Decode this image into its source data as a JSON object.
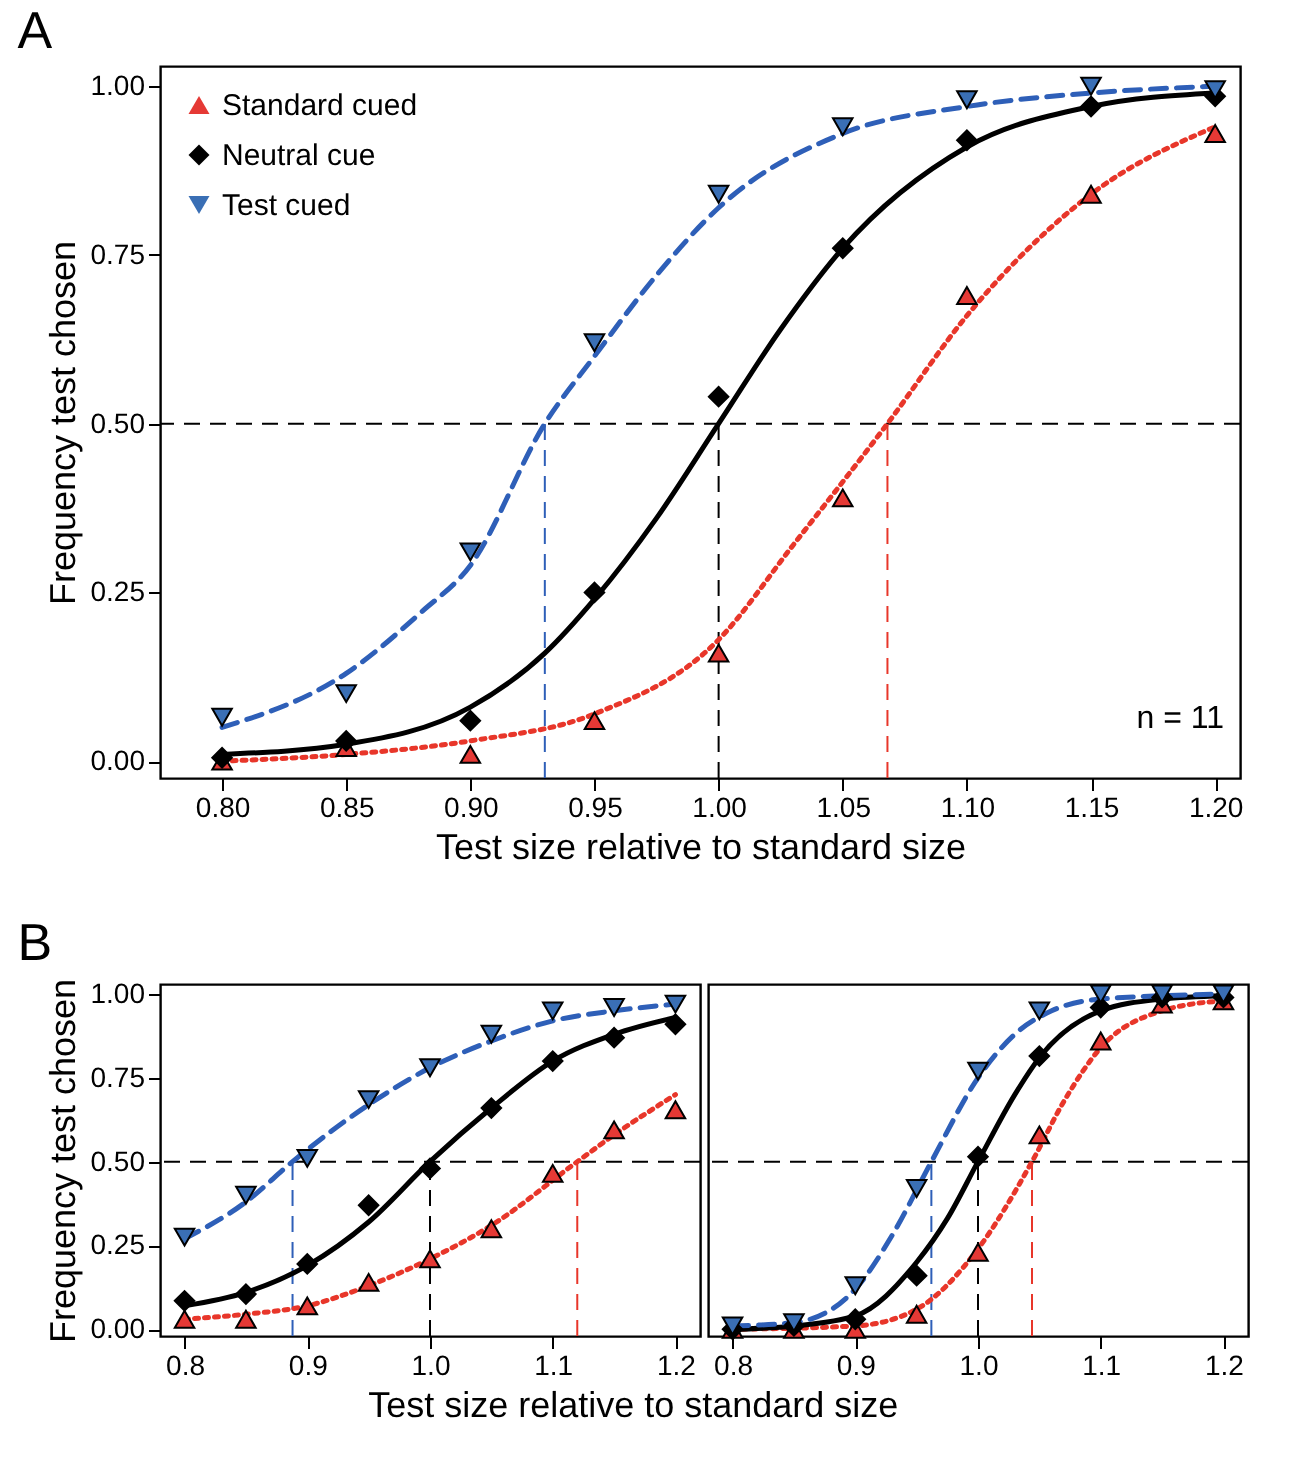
{
  "chart_data": [
    {
      "type": "scatter",
      "title": "A",
      "xlabel": "Test size relative to standard size",
      "ylabel": "Frequency test chosen",
      "legend": "top left",
      "grid": false,
      "xlim": [
        0.775,
        1.21
      ],
      "xticks": [
        {
          "value": 0.8,
          "label": "0.80"
        },
        {
          "value": 0.85,
          "label": "0.85"
        },
        {
          "value": 0.9,
          "label": "0.90"
        },
        {
          "value": 0.95,
          "label": "0.95"
        },
        {
          "value": 1.0,
          "label": "1.00"
        },
        {
          "value": 1.05,
          "label": "1.05"
        },
        {
          "value": 1.1,
          "label": "1.10"
        },
        {
          "value": 1.15,
          "label": "1.15"
        },
        {
          "value": 1.2,
          "label": "1.20"
        }
      ],
      "ylim": [
        -0.025,
        1.03
      ],
      "yticks": [
        {
          "value": 0,
          "label": "0.00"
        },
        {
          "value": 0.25,
          "label": "0.25"
        },
        {
          "value": 0.5,
          "label": "0.50"
        },
        {
          "value": 0.75,
          "label": "0.75"
        },
        {
          "value": 1,
          "label": "1.00"
        }
      ],
      "x": [
        0.8,
        0.85,
        0.9,
        0.95,
        1.0,
        1.05,
        1.1,
        1.15,
        1.2
      ],
      "series": [
        {
          "name": "Standard cued",
          "type": "scatter",
          "marker": "triangle",
          "color": "#e53935",
          "values": [
            0.0,
            0.02,
            0.01,
            0.06,
            0.16,
            0.39,
            0.69,
            0.84,
            0.93
          ]
        },
        {
          "name": "Neutral cue",
          "type": "scatter",
          "marker": "diamond",
          "color": "#000000",
          "values": [
            0.005,
            0.03,
            0.06,
            0.25,
            0.54,
            0.76,
            0.92,
            0.97,
            0.985
          ]
        },
        {
          "name": "Test cued",
          "type": "scatter",
          "marker": "triangle-down",
          "color": "#3a6fb5",
          "values": [
            0.065,
            0.1,
            0.31,
            0.62,
            0.84,
            0.94,
            0.98,
            1.0,
            0.995
          ]
        },
        {
          "type": "line",
          "line_style": "dotted",
          "color": "#e8362a",
          "x": [
            0.8,
            0.85,
            0.9,
            0.95,
            1.0,
            1.03,
            1.068,
            1.1,
            1.15,
            1.2
          ],
          "values": [
            0.0,
            0.01,
            0.03,
            0.07,
            0.18,
            0.32,
            0.5,
            0.66,
            0.84,
            0.94
          ]
        },
        {
          "type": "line",
          "line_style": "solid",
          "color": "#000000",
          "x": [
            0.8,
            0.85,
            0.9,
            0.93,
            0.95,
            0.975,
            1.0,
            1.025,
            1.05,
            1.1,
            1.15,
            1.2
          ],
          "values": [
            0.01,
            0.025,
            0.08,
            0.16,
            0.24,
            0.36,
            0.5,
            0.64,
            0.76,
            0.91,
            0.97,
            0.99
          ]
        },
        {
          "type": "line",
          "line_style": "dashed",
          "color": "#2e5fb8",
          "x": [
            0.8,
            0.85,
            0.88,
            0.9,
            0.93,
            0.95,
            0.975,
            1.0,
            1.05,
            1.1,
            1.15,
            1.2
          ],
          "values": [
            0.05,
            0.13,
            0.22,
            0.29,
            0.5,
            0.6,
            0.72,
            0.82,
            0.93,
            0.97,
            0.99,
            1.0
          ]
        }
      ],
      "ref_lines": [
        {
          "axis": "y",
          "value": 0.5,
          "color": "#000000",
          "line_style": "dashed"
        },
        {
          "axis": "x",
          "value": 0.93,
          "color": "#2e5fb8",
          "line_style": "dashed"
        },
        {
          "axis": "x",
          "value": 1.0,
          "color": "#000000",
          "line_style": "dashed"
        },
        {
          "axis": "x",
          "value": 1.068,
          "color": "#e8362a",
          "line_style": "dashed"
        }
      ],
      "annotations": [
        "n = 11"
      ]
    },
    {
      "type": "scatter",
      "title": "B",
      "xlabel": "Test size relative to standard size",
      "ylabel": "Frequency test chosen",
      "grid": false,
      "xlim": [
        0.78,
        1.22
      ],
      "xticks": [
        {
          "value": 0.8,
          "label": "0.8"
        },
        {
          "value": 0.9,
          "label": "0.9"
        },
        {
          "value": 1.0,
          "label": "1.0"
        },
        {
          "value": 1.1,
          "label": "1.1"
        },
        {
          "value": 1.2,
          "label": "1.2"
        }
      ],
      "ylim": [
        -0.02,
        1.03
      ],
      "yticks": [
        {
          "value": 0,
          "label": "0.00"
        },
        {
          "value": 0.25,
          "label": "0.25"
        },
        {
          "value": 0.5,
          "label": "0.50"
        },
        {
          "value": 0.75,
          "label": "0.75"
        },
        {
          "value": 1,
          "label": "1.00"
        }
      ],
      "x": [
        0.8,
        0.85,
        0.9,
        0.95,
        1.0,
        1.05,
        1.1,
        1.15,
        1.2
      ],
      "series": [
        {
          "type": "scatter",
          "marker": "triangle",
          "color": "#e53935",
          "values": [
            0.03,
            0.03,
            0.07,
            0.14,
            0.21,
            0.3,
            0.465,
            0.595,
            0.655
          ]
        },
        {
          "type": "scatter",
          "marker": "diamond",
          "color": "#000000",
          "values": [
            0.085,
            0.105,
            0.195,
            0.37,
            0.48,
            0.66,
            0.8,
            0.87,
            0.91
          ]
        },
        {
          "type": "scatter",
          "marker": "triangle-down",
          "color": "#3a6fb5",
          "values": [
            0.275,
            0.4,
            0.51,
            0.685,
            0.78,
            0.88,
            0.95,
            0.96,
            0.97
          ]
        },
        {
          "type": "line",
          "line_style": "dotted",
          "color": "#e8362a",
          "x": [
            0.8,
            0.85,
            0.9,
            0.95,
            1.0,
            1.05,
            1.12,
            1.15,
            1.2
          ],
          "values": [
            0.03,
            0.045,
            0.07,
            0.13,
            0.21,
            0.31,
            0.5,
            0.58,
            0.7
          ]
        },
        {
          "type": "line",
          "line_style": "solid",
          "color": "#000000",
          "x": [
            0.8,
            0.85,
            0.9,
            0.95,
            1.0,
            1.05,
            1.1,
            1.15,
            1.2
          ],
          "values": [
            0.07,
            0.11,
            0.19,
            0.32,
            0.5,
            0.66,
            0.8,
            0.88,
            0.93
          ]
        },
        {
          "type": "line",
          "line_style": "dashed",
          "color": "#2e5fb8",
          "x": [
            0.8,
            0.85,
            0.888,
            0.95,
            1.0,
            1.05,
            1.1,
            1.15,
            1.2
          ],
          "values": [
            0.27,
            0.38,
            0.5,
            0.67,
            0.78,
            0.86,
            0.92,
            0.95,
            0.97
          ]
        }
      ],
      "ref_lines": [
        {
          "axis": "y",
          "value": 0.5,
          "color": "#000000",
          "line_style": "dashed"
        },
        {
          "axis": "x",
          "value": 0.888,
          "color": "#2e5fb8",
          "line_style": "dashed"
        },
        {
          "axis": "x",
          "value": 1.0,
          "color": "#000000",
          "line_style": "dashed"
        },
        {
          "axis": "x",
          "value": 1.12,
          "color": "#e8362a",
          "line_style": "dashed"
        }
      ]
    },
    {
      "type": "scatter",
      "tick_labels": "x",
      "grid": false,
      "xlim": [
        0.78,
        1.22
      ],
      "xticks": [
        {
          "value": 0.8,
          "label": "0.8"
        },
        {
          "value": 0.9,
          "label": "0.9"
        },
        {
          "value": 1.0,
          "label": "1.0"
        },
        {
          "value": 1.1,
          "label": "1.1"
        },
        {
          "value": 1.2,
          "label": "1.2"
        }
      ],
      "ylim": [
        -0.02,
        1.03
      ],
      "x": [
        0.8,
        0.85,
        0.9,
        0.95,
        1.0,
        1.05,
        1.1,
        1.15,
        1.2
      ],
      "series": [
        {
          "type": "scatter",
          "marker": "triangle",
          "color": "#e53935",
          "values": [
            0.0,
            0.0,
            0.0,
            0.045,
            0.23,
            0.58,
            0.86,
            0.97,
            0.98
          ]
        },
        {
          "type": "scatter",
          "marker": "diamond",
          "color": "#000000",
          "values": [
            0.0,
            0.01,
            0.03,
            0.16,
            0.515,
            0.815,
            0.96,
            0.99,
            0.99
          ]
        },
        {
          "type": "scatter",
          "marker": "triangle-down",
          "color": "#3a6fb5",
          "values": [
            0.01,
            0.02,
            0.13,
            0.42,
            0.77,
            0.95,
            1.0,
            1.0,
            1.0
          ]
        },
        {
          "type": "line",
          "line_style": "dotted",
          "color": "#e8362a",
          "x": [
            0.8,
            0.9,
            0.95,
            1.0,
            1.044,
            1.07,
            1.1,
            1.15,
            1.2
          ],
          "values": [
            0.0,
            0.01,
            0.06,
            0.24,
            0.5,
            0.68,
            0.84,
            0.95,
            0.98
          ]
        },
        {
          "type": "line",
          "line_style": "solid",
          "color": "#000000",
          "x": [
            0.8,
            0.85,
            0.9,
            0.95,
            0.975,
            1.0,
            1.03,
            1.05,
            1.1,
            1.15,
            1.2
          ],
          "values": [
            0.0,
            0.01,
            0.04,
            0.2,
            0.33,
            0.5,
            0.7,
            0.81,
            0.95,
            0.985,
            0.995
          ]
        },
        {
          "type": "line",
          "line_style": "dashed",
          "color": "#2e5fb8",
          "x": [
            0.8,
            0.85,
            0.9,
            0.93,
            0.962,
            1.0,
            1.03,
            1.06,
            1.1,
            1.2
          ],
          "values": [
            0.01,
            0.02,
            0.12,
            0.28,
            0.5,
            0.75,
            0.88,
            0.95,
            0.985,
            1.0
          ]
        }
      ],
      "ref_lines": [
        {
          "axis": "y",
          "value": 0.5,
          "color": "#000000",
          "line_style": "dashed"
        },
        {
          "axis": "x",
          "value": 0.962,
          "color": "#2e5fb8",
          "line_style": "dashed"
        },
        {
          "axis": "x",
          "value": 1.0,
          "color": "#000000",
          "line_style": "dashed"
        },
        {
          "axis": "x",
          "value": 1.044,
          "color": "#e8362a",
          "line_style": "dashed"
        }
      ]
    }
  ]
}
